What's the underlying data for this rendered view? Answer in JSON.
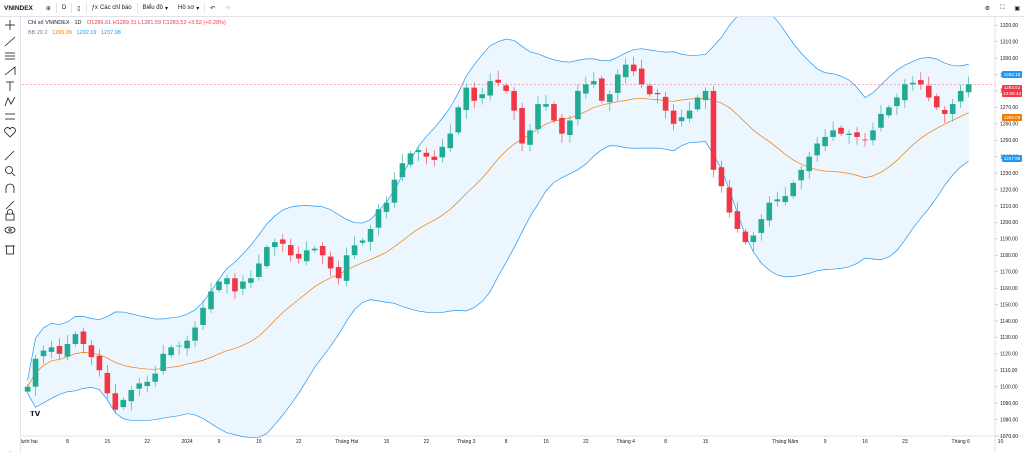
{
  "toolbar": {
    "symbol": "VNINDEX",
    "interval": "D",
    "indicators_label": "Các chỉ báo",
    "chart_type_label": "Biểu đồ",
    "template_label": "Hồ sơ"
  },
  "legend": {
    "title": "Chỉ số VNINDEX · 1D",
    "ohlc": "O1286.61 H1289.31 L1281.59 C1283.52 +3.52 (+0.28%)",
    "bb_label": "BB 20 2",
    "bb_basis": "1265.09",
    "bb_upper": "1292.19",
    "bb_lower": "1237.98"
  },
  "price_labels": {
    "upper": "1292.19",
    "last": "1283.52",
    "last_sub": "23:59:43",
    "basis": "1265.09",
    "lower": "1237.98"
  },
  "colors": {
    "up": "#22ab94",
    "down": "#f23645",
    "basis": "#f57c00",
    "band": "#2196f3",
    "band_fill": "#e3f2fd"
  },
  "chart_data": {
    "type": "candlestick",
    "ylim": [
      1070,
      1325
    ],
    "y_ticks": [
      1070,
      1080,
      1090,
      1100,
      1110,
      1120,
      1130,
      1140,
      1150,
      1160,
      1170,
      1180,
      1190,
      1200,
      1210,
      1220,
      1230,
      1240,
      1250,
      1260,
      1270,
      1280,
      1290,
      1300,
      1310,
      1320
    ],
    "x_ticks": [
      {
        "i": 0,
        "label": "Mười hai"
      },
      {
        "i": 5,
        "label": "8"
      },
      {
        "i": 10,
        "label": "15"
      },
      {
        "i": 15,
        "label": "22"
      },
      {
        "i": 20,
        "label": "2024"
      },
      {
        "i": 24,
        "label": "9"
      },
      {
        "i": 29,
        "label": "16"
      },
      {
        "i": 34,
        "label": "22"
      },
      {
        "i": 40,
        "label": "Tháng Hai"
      },
      {
        "i": 45,
        "label": "15"
      },
      {
        "i": 50,
        "label": "22"
      },
      {
        "i": 55,
        "label": "Tháng 3"
      },
      {
        "i": 60,
        "label": "8"
      },
      {
        "i": 65,
        "label": "15"
      },
      {
        "i": 70,
        "label": "22"
      },
      {
        "i": 75,
        "label": "Tháng 4"
      },
      {
        "i": 80,
        "label": "8"
      },
      {
        "i": 85,
        "label": "15"
      },
      {
        "i": 95,
        "label": "Tháng Năm"
      },
      {
        "i": 100,
        "label": "9"
      },
      {
        "i": 105,
        "label": "16"
      },
      {
        "i": 110,
        "label": "23"
      },
      {
        "i": 117,
        "label": "Tháng 6"
      },
      {
        "i": 122,
        "label": "10"
      }
    ],
    "close": [
      1100,
      1117,
      1122,
      1124,
      1120,
      1126,
      1132,
      1126,
      1118,
      1110,
      1096,
      1086,
      1092,
      1098,
      1102,
      1103,
      1108,
      1120,
      1124,
      1125,
      1128,
      1136,
      1148,
      1158,
      1164,
      1166,
      1158,
      1164,
      1166,
      1175,
      1185,
      1188,
      1187,
      1180,
      1178,
      1183,
      1184,
      1180,
      1172,
      1166,
      1180,
      1186,
      1189,
      1196,
      1208,
      1212,
      1226,
      1236,
      1242,
      1244,
      1240,
      1238,
      1246,
      1254,
      1270,
      1282,
      1274,
      1278,
      1286,
      1285,
      1280,
      1268,
      1248,
      1256,
      1272,
      1272,
      1262,
      1254,
      1262,
      1280,
      1284,
      1286,
      1274,
      1278,
      1290,
      1296,
      1292,
      1284,
      1278,
      1278,
      1268,
      1260,
      1264,
      1268,
      1276,
      1280,
      1232,
      1222,
      1206,
      1196,
      1188,
      1192,
      1202,
      1212,
      1214,
      1216,
      1224,
      1232,
      1240,
      1248,
      1252,
      1256,
      1254,
      1254,
      1252,
      1250,
      1256,
      1266,
      1270,
      1276,
      1284,
      1285,
      1284,
      1276,
      1270,
      1266,
      1272,
      1280,
      1284
    ]
  }
}
